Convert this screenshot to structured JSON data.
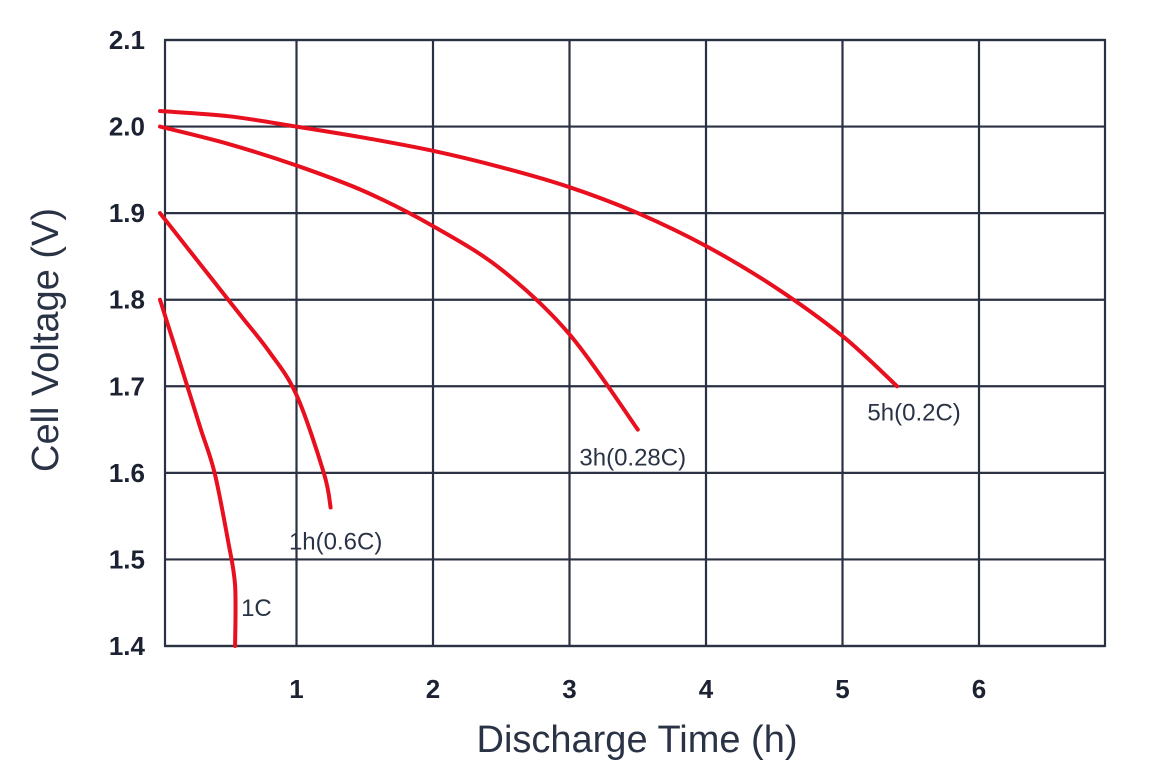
{
  "chart_data": {
    "type": "line",
    "title": "",
    "xlabel": "Discharge Time (h)",
    "ylabel": "Cell Voltage (V)",
    "xlim": [
      0,
      6.9
    ],
    "ylim": [
      1.4,
      2.1
    ],
    "x_ticks": [
      1,
      2,
      3,
      4,
      5,
      6
    ],
    "x_tick_labels": [
      "1",
      "2",
      "3",
      "4",
      "5",
      "6"
    ],
    "y_ticks": [
      1.4,
      1.5,
      1.6,
      1.7,
      1.8,
      1.9,
      2.0,
      2.1
    ],
    "y_tick_labels": [
      "1.4",
      "1.5",
      "1.6",
      "1.7",
      "1.8",
      "1.9",
      "2.0",
      "2.1"
    ],
    "grid": true,
    "line_color": "#e8101e",
    "series": [
      {
        "name": "1C",
        "x": [
          0.0,
          0.1,
          0.2,
          0.3,
          0.4,
          0.5,
          0.55,
          0.55
        ],
        "y": [
          1.8,
          1.75,
          1.7,
          1.65,
          1.6,
          1.52,
          1.47,
          1.4
        ]
      },
      {
        "name": "1h(0.6C)",
        "x": [
          0.0,
          0.2,
          0.4,
          0.6,
          0.8,
          1.0,
          1.2,
          1.25
        ],
        "y": [
          1.9,
          1.86,
          1.82,
          1.78,
          1.74,
          1.69,
          1.6,
          1.56
        ]
      },
      {
        "name": "3h(0.28C)",
        "x": [
          0.0,
          0.5,
          1.0,
          1.5,
          2.0,
          2.5,
          3.0,
          3.5
        ],
        "y": [
          2.0,
          1.98,
          1.955,
          1.925,
          1.885,
          1.835,
          1.76,
          1.65
        ]
      },
      {
        "name": "5h(0.2C)",
        "x": [
          0.0,
          0.5,
          1.0,
          1.5,
          2.0,
          2.5,
          3.0,
          3.5,
          4.0,
          4.5,
          5.0,
          5.4
        ],
        "y": [
          2.018,
          2.012,
          2.0,
          1.987,
          1.972,
          1.953,
          1.93,
          1.9,
          1.862,
          1.815,
          1.758,
          1.7
        ]
      }
    ]
  }
}
